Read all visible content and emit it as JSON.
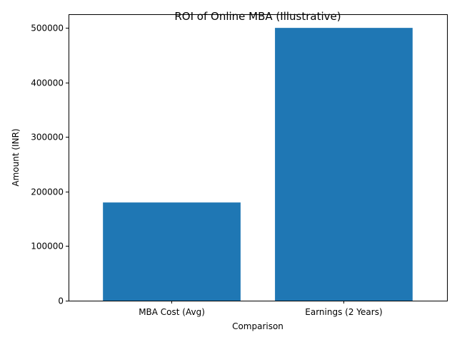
{
  "chart_data": {
    "type": "bar",
    "title": "ROI of Online MBA (Illustrative)",
    "xlabel": "Comparison",
    "ylabel": "Amount (INR)",
    "categories": [
      "MBA Cost (Avg)",
      "Earnings (2 Years)"
    ],
    "values": [
      180000,
      500000
    ],
    "ylim": [
      0,
      525000
    ],
    "yticks": [
      0,
      100000,
      200000,
      300000,
      400000,
      500000
    ],
    "bar_color": "#1f77b4",
    "grid": false,
    "legend": "none"
  }
}
